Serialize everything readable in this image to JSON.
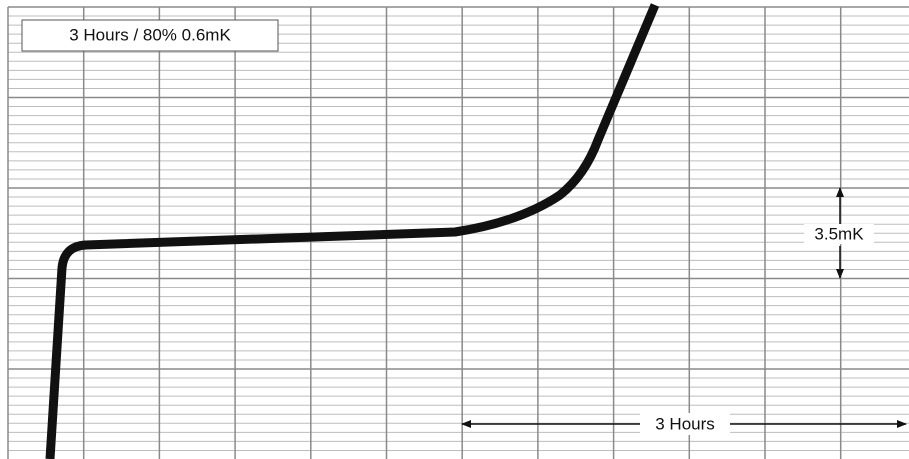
{
  "legend_box": {
    "text": "3 Hours / 80% 0.6mK"
  },
  "annotations": {
    "vertical_span": "3.5mK",
    "horizontal_span": "3 Hours"
  }
}
